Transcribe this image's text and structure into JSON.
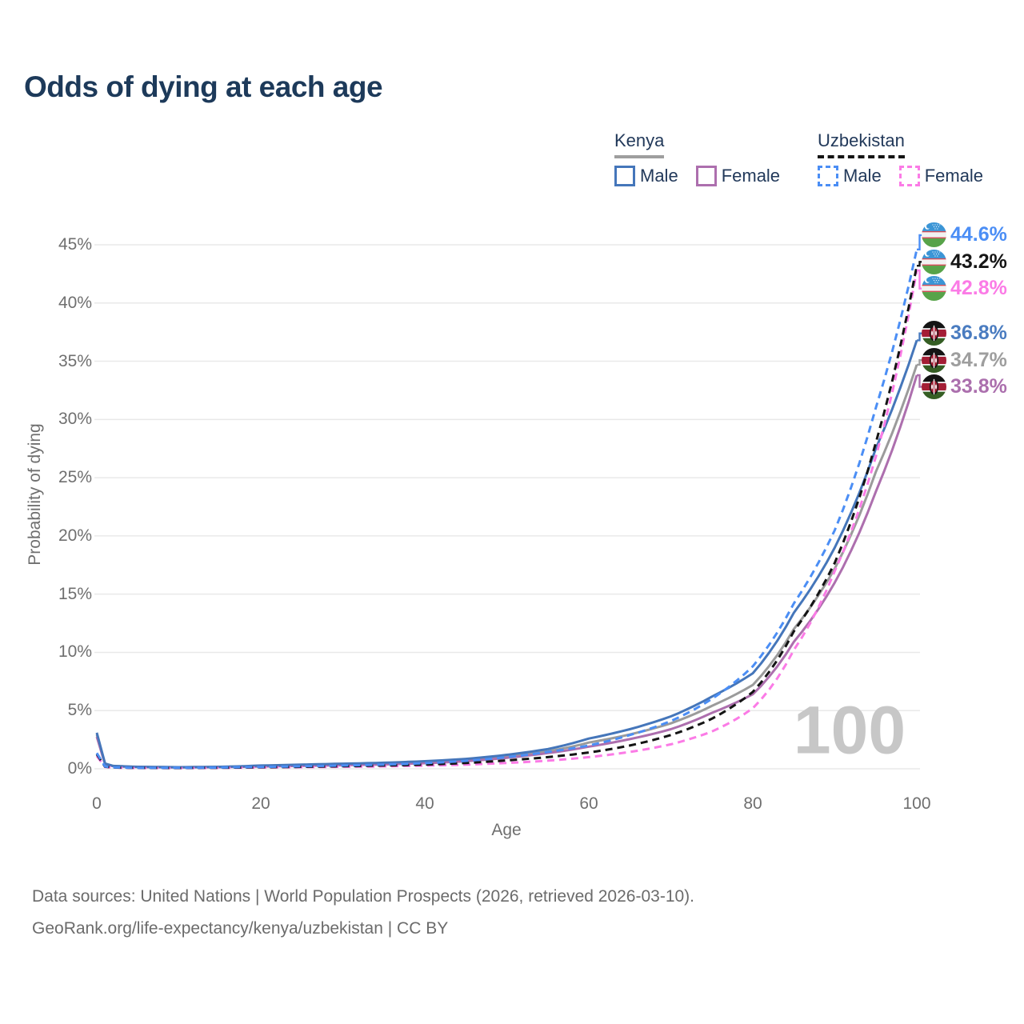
{
  "page": {
    "title": "Odds of dying at each age"
  },
  "legend": {
    "kenya": {
      "label": "Kenya",
      "male": "Male",
      "female": "Female"
    },
    "uzbekistan": {
      "label": "Uzbekistan",
      "male": "Male",
      "female": "Female"
    }
  },
  "colors": {
    "kenya_male": "#4576ba",
    "kenya_female": "#ad6fae",
    "kenya_both": "#9b9b9b",
    "uzbekistan_male": "#4b8ef5",
    "uzbekistan_female": "#fb7be6",
    "uzbekistan_both": "#141414",
    "grid": "#e9e9e9",
    "title_text": "#1d3a5a",
    "axis_text": "#6f6f6f"
  },
  "chart_data": {
    "type": "line",
    "title": "Odds of dying at each age",
    "xlabel": "Age",
    "ylabel": "Probability of dying",
    "x_ticks": [
      0,
      20,
      40,
      60,
      80,
      100
    ],
    "y_ticks_percent": [
      0,
      5,
      10,
      15,
      20,
      25,
      30,
      35,
      40,
      45
    ],
    "xlim": [
      0,
      100
    ],
    "ylim_percent": [
      0,
      45
    ],
    "grid": "horizontal",
    "legend_position": "top-right",
    "watermark_age": "100",
    "ages": [
      0,
      1,
      2,
      5,
      10,
      15,
      20,
      25,
      30,
      35,
      40,
      45,
      50,
      55,
      60,
      65,
      70,
      75,
      80,
      85,
      90,
      95,
      100
    ],
    "series": [
      {
        "name": "Kenya (both sexes)",
        "country": "kenya",
        "sex": "both",
        "line": "solid",
        "color": "#9b9b9b",
        "values_percent": [
          2.95,
          0.43,
          0.24,
          0.16,
          0.13,
          0.16,
          0.24,
          0.31,
          0.38,
          0.46,
          0.57,
          0.75,
          1.07,
          1.5,
          2.25,
          2.95,
          3.9,
          5.4,
          7.2,
          12.0,
          17.2,
          25.5,
          34.7
        ],
        "end_label": "34.7%"
      },
      {
        "name": "Kenya Female",
        "country": "kenya",
        "sex": "female",
        "line": "solid",
        "color": "#ad6fae",
        "values_percent": [
          2.75,
          0.4,
          0.22,
          0.15,
          0.12,
          0.14,
          0.2,
          0.25,
          0.31,
          0.38,
          0.48,
          0.65,
          0.95,
          1.35,
          1.9,
          2.55,
          3.4,
          4.8,
          6.4,
          10.9,
          16.0,
          23.8,
          33.8
        ],
        "end_label": "33.8%"
      },
      {
        "name": "Kenya Male",
        "country": "kenya",
        "sex": "male",
        "line": "solid",
        "color": "#4576ba",
        "values_percent": [
          3.1,
          0.45,
          0.25,
          0.17,
          0.14,
          0.17,
          0.28,
          0.36,
          0.44,
          0.52,
          0.65,
          0.85,
          1.2,
          1.7,
          2.6,
          3.4,
          4.5,
          6.2,
          8.2,
          13.4,
          19.0,
          27.5,
          36.8
        ],
        "end_label": "36.8%"
      },
      {
        "name": "Uzbekistan Female",
        "country": "uzbekistan",
        "sex": "female",
        "line": "dashed",
        "color": "#fb7be6",
        "values_percent": [
          1.1,
          0.16,
          0.1,
          0.07,
          0.06,
          0.08,
          0.11,
          0.14,
          0.17,
          0.21,
          0.27,
          0.36,
          0.5,
          0.7,
          1.0,
          1.45,
          2.1,
          3.2,
          5.2,
          10.2,
          17.0,
          26.8,
          42.8
        ],
        "end_label": "42.8%"
      },
      {
        "name": "Uzbekistan (both sexes)",
        "country": "uzbekistan",
        "sex": "both",
        "line": "dashed",
        "color": "#141414",
        "values_percent": [
          1.25,
          0.18,
          0.11,
          0.08,
          0.07,
          0.09,
          0.13,
          0.17,
          0.22,
          0.28,
          0.36,
          0.5,
          0.72,
          1.0,
          1.4,
          2.0,
          2.9,
          4.3,
          6.6,
          11.8,
          17.7,
          28.0,
          43.2
        ],
        "end_label": "43.2%"
      },
      {
        "name": "Uzbekistan Male",
        "country": "uzbekistan",
        "sex": "male",
        "line": "dashed",
        "color": "#4b8ef5",
        "values_percent": [
          1.35,
          0.2,
          0.12,
          0.09,
          0.08,
          0.11,
          0.16,
          0.22,
          0.28,
          0.36,
          0.48,
          0.68,
          1.0,
          1.45,
          2.0,
          2.9,
          4.1,
          6.0,
          8.8,
          14.2,
          20.5,
          31.0,
          44.6
        ],
        "end_label": "44.6%"
      }
    ]
  },
  "end_labels": [
    {
      "text": "44.6%",
      "pct": 44.6,
      "color": "#4b8ef5",
      "country": "uzbekistan",
      "series": "Uzbekistan Male"
    },
    {
      "text": "43.2%",
      "pct": 43.2,
      "color": "#161616",
      "country": "uzbekistan",
      "series": "Uzbekistan (both sexes)"
    },
    {
      "text": "42.8%",
      "pct": 42.8,
      "color": "#fb7be6",
      "country": "uzbekistan",
      "series": "Uzbekistan Female"
    },
    {
      "text": "36.8%",
      "pct": 36.8,
      "color": "#4a7cc0",
      "country": "kenya",
      "series": "Kenya Male"
    },
    {
      "text": "34.7%",
      "pct": 34.7,
      "color": "#9e9e9e",
      "country": "kenya",
      "series": "Kenya (both sexes)"
    },
    {
      "text": "33.8%",
      "pct": 33.8,
      "color": "#ab6fad",
      "country": "kenya",
      "series": "Kenya Female"
    }
  ],
  "footer": {
    "line1": "Data sources: United Nations | World Population Prospects (2026, retrieved 2026-03-10).",
    "line2": "GeoRank.org/life-expectancy/kenya/uzbekistan | CC BY"
  }
}
